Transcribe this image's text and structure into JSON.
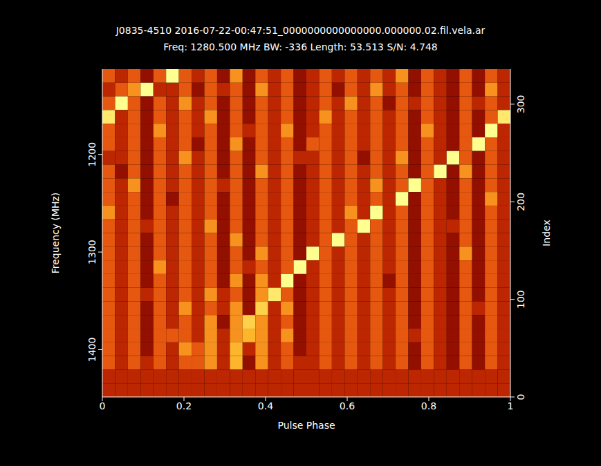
{
  "chart_data": {
    "type": "heatmap",
    "title": "J0835-4510 2016-07-22-00:47:51_0000000000000000.000000.02.fil.vela.ar",
    "subtitle": "Freq: 1280.500 MHz BW: -336 Length: 53.513 S/N: 4.748",
    "x_label": "Pulse Phase",
    "y_label": "Frequency (MHz)",
    "y2_label": "Index",
    "xlim": [
      0,
      1
    ],
    "xticks": [
      0,
      0.2,
      0.4,
      0.6,
      0.8,
      1
    ],
    "ylim": [
      1448.5,
      1112.5
    ],
    "yticks": [
      1200,
      1300,
      1400
    ],
    "y2lim": [
      0,
      336
    ],
    "y2ticks": [
      0,
      100,
      200,
      300
    ],
    "zlim": [
      0,
      9
    ],
    "cells": [
      [
        4,
        3,
        4,
        2,
        4,
        9,
        4,
        3,
        4,
        2,
        5,
        2,
        4,
        3,
        4,
        2,
        3,
        4,
        3,
        4,
        3,
        4,
        3,
        5,
        2,
        4,
        3,
        2,
        4,
        2,
        4,
        3
      ],
      [
        3,
        4,
        5,
        9,
        3,
        3,
        4,
        2,
        4,
        3,
        4,
        2,
        5,
        3,
        4,
        2,
        3,
        4,
        2,
        4,
        3,
        5,
        3,
        4,
        2,
        4,
        3,
        2,
        4,
        2,
        5,
        3
      ],
      [
        4,
        9,
        4,
        2,
        4,
        3,
        5,
        3,
        4,
        2,
        4,
        2,
        4,
        3,
        4,
        2,
        3,
        4,
        3,
        5,
        3,
        4,
        2,
        4,
        3,
        4,
        3,
        2,
        4,
        3,
        4,
        3
      ],
      [
        8,
        3,
        4,
        2,
        4,
        3,
        4,
        3,
        5,
        2,
        4,
        2,
        4,
        3,
        4,
        2,
        3,
        5,
        3,
        4,
        3,
        4,
        3,
        4,
        2,
        4,
        3,
        2,
        4,
        2,
        4,
        8
      ],
      [
        4,
        3,
        4,
        2,
        5,
        3,
        4,
        3,
        4,
        2,
        4,
        3,
        4,
        3,
        5,
        2,
        3,
        4,
        3,
        4,
        3,
        4,
        3,
        4,
        2,
        5,
        3,
        2,
        4,
        2,
        9,
        3
      ],
      [
        4,
        3,
        4,
        2,
        4,
        3,
        4,
        2,
        4,
        2,
        5,
        2,
        4,
        3,
        4,
        2,
        4,
        4,
        3,
        4,
        3,
        4,
        3,
        4,
        2,
        4,
        3,
        2,
        4,
        9,
        4,
        3
      ],
      [
        3,
        3,
        4,
        2,
        4,
        3,
        5,
        3,
        4,
        2,
        4,
        2,
        4,
        3,
        4,
        3,
        3,
        4,
        3,
        4,
        2,
        4,
        3,
        5,
        2,
        4,
        3,
        9,
        4,
        2,
        4,
        3
      ],
      [
        4,
        2,
        4,
        2,
        4,
        3,
        4,
        3,
        4,
        2,
        4,
        2,
        5,
        3,
        4,
        2,
        3,
        4,
        3,
        4,
        3,
        4,
        3,
        4,
        2,
        4,
        9,
        2,
        5,
        2,
        4,
        3
      ],
      [
        4,
        3,
        5,
        2,
        4,
        3,
        4,
        3,
        4,
        3,
        4,
        2,
        4,
        3,
        4,
        2,
        3,
        4,
        3,
        4,
        3,
        5,
        3,
        4,
        9,
        4,
        3,
        2,
        4,
        2,
        4,
        3
      ],
      [
        4,
        3,
        4,
        2,
        4,
        2,
        4,
        3,
        4,
        2,
        4,
        2,
        4,
        3,
        4,
        2,
        3,
        4,
        3,
        4,
        3,
        4,
        3,
        9,
        2,
        4,
        3,
        2,
        4,
        2,
        5,
        3
      ],
      [
        5,
        3,
        4,
        2,
        4,
        3,
        4,
        3,
        4,
        2,
        4,
        2,
        4,
        3,
        4,
        2,
        3,
        4,
        3,
        5,
        3,
        9,
        3,
        4,
        2,
        4,
        3,
        2,
        4,
        2,
        4,
        3
      ],
      [
        4,
        3,
        4,
        3,
        4,
        3,
        4,
        3,
        5,
        2,
        4,
        2,
        4,
        3,
        4,
        2,
        3,
        4,
        3,
        4,
        9,
        4,
        3,
        4,
        2,
        4,
        3,
        3,
        4,
        2,
        4,
        3
      ],
      [
        4,
        3,
        4,
        2,
        4,
        3,
        4,
        3,
        4,
        2,
        5,
        2,
        4,
        3,
        4,
        2,
        3,
        4,
        9,
        4,
        3,
        4,
        3,
        4,
        2,
        4,
        3,
        2,
        4,
        2,
        4,
        3
      ],
      [
        4,
        3,
        4,
        2,
        4,
        3,
        4,
        3,
        4,
        2,
        4,
        2,
        5,
        3,
        4,
        2,
        9,
        4,
        3,
        4,
        3,
        4,
        3,
        4,
        2,
        4,
        3,
        2,
        5,
        2,
        4,
        3
      ],
      [
        4,
        3,
        4,
        2,
        5,
        3,
        4,
        3,
        4,
        2,
        4,
        3,
        4,
        3,
        4,
        9,
        3,
        4,
        3,
        4,
        3,
        4,
        3,
        4,
        2,
        4,
        3,
        2,
        4,
        2,
        4,
        3
      ],
      [
        4,
        3,
        4,
        2,
        4,
        3,
        4,
        3,
        4,
        2,
        5,
        2,
        5,
        3,
        9,
        2,
        3,
        4,
        3,
        4,
        3,
        4,
        2,
        4,
        2,
        4,
        3,
        2,
        4,
        2,
        4,
        3
      ],
      [
        4,
        3,
        4,
        3,
        4,
        3,
        4,
        3,
        5,
        3,
        4,
        2,
        5,
        8,
        4,
        2,
        3,
        4,
        3,
        4,
        3,
        4,
        3,
        4,
        2,
        4,
        3,
        2,
        4,
        2,
        4,
        3
      ],
      [
        4,
        3,
        4,
        2,
        4,
        3,
        5,
        3,
        4,
        3,
        5,
        2,
        7,
        3,
        5,
        2,
        3,
        4,
        3,
        4,
        3,
        4,
        3,
        4,
        2,
        4,
        3,
        2,
        4,
        3,
        4,
        3
      ],
      [
        4,
        3,
        4,
        2,
        4,
        3,
        4,
        3,
        5,
        2,
        5,
        7,
        5,
        3,
        4,
        2,
        3,
        4,
        3,
        4,
        3,
        4,
        3,
        4,
        2,
        4,
        3,
        2,
        4,
        2,
        4,
        3
      ],
      [
        4,
        3,
        4,
        2,
        4,
        4,
        4,
        3,
        5,
        3,
        5,
        6,
        5,
        3,
        5,
        2,
        3,
        4,
        3,
        4,
        3,
        4,
        3,
        4,
        3,
        4,
        3,
        2,
        4,
        2,
        4,
        3
      ],
      [
        4,
        3,
        4,
        2,
        4,
        3,
        5,
        4,
        5,
        3,
        6,
        3,
        5,
        3,
        4,
        2,
        3,
        4,
        3,
        4,
        3,
        4,
        3,
        4,
        2,
        4,
        3,
        2,
        4,
        2,
        4,
        3
      ],
      [
        4,
        3,
        4,
        3,
        4,
        3,
        4,
        4,
        5,
        3,
        6,
        2,
        5,
        3,
        4,
        3,
        3,
        4,
        3,
        4,
        3,
        4,
        3,
        4,
        2,
        4,
        3,
        2,
        4,
        2,
        4,
        3
      ],
      [
        3,
        3,
        3,
        3,
        3,
        3,
        3,
        3,
        3,
        3,
        3,
        3,
        3,
        3,
        3,
        3,
        3,
        3,
        3,
        3,
        3,
        3,
        3,
        3,
        3,
        3,
        3,
        3,
        3,
        3,
        3,
        3
      ],
      [
        3,
        3,
        3,
        3,
        3,
        3,
        3,
        3,
        3,
        3,
        3,
        3,
        3,
        3,
        3,
        3,
        3,
        3,
        3,
        3,
        3,
        3,
        3,
        3,
        3,
        3,
        3,
        3,
        3,
        3,
        3,
        3
      ]
    ]
  }
}
